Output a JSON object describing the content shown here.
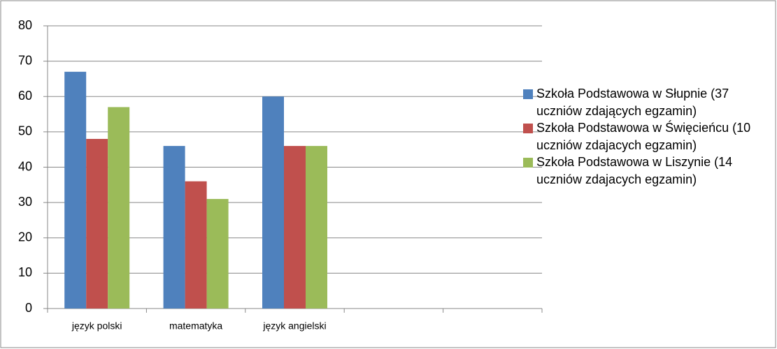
{
  "chart_data": {
    "type": "bar",
    "categories": [
      "język polski",
      "matematyka",
      "język angielski",
      null,
      null
    ],
    "series": [
      {
        "name": "Szkoła Podstawowa w Słupnie (37 uczniów zdających egzamin)",
        "color": "#4f81bd",
        "values": [
          67,
          46,
          60,
          null,
          null
        ]
      },
      {
        "name": "Szkoła Podstawowa w Święcieńcu (10 uczniów zdajacych egzamin)",
        "color": "#c0504d",
        "values": [
          48,
          36,
          46,
          null,
          null
        ]
      },
      {
        "name": "Szkoła Podstawowa w Liszynie (14 uczniów zdajacych egzamin)",
        "color": "#9bbb59",
        "values": [
          57,
          31,
          46,
          null,
          null
        ]
      }
    ],
    "ylim": [
      0,
      80
    ],
    "yticks": [
      0,
      10,
      20,
      30,
      40,
      50,
      60,
      70,
      80
    ],
    "grid": true,
    "legend": "right"
  }
}
